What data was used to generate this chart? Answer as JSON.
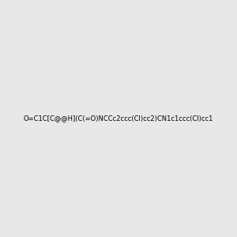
{
  "smiles": "O=C1C[C@@H](C(=O)NCCc2ccc(Cl)cc2)CN1c1ccc(Cl)cc1",
  "image_size": 300,
  "background_color": "#e8e8e8",
  "title": ""
}
